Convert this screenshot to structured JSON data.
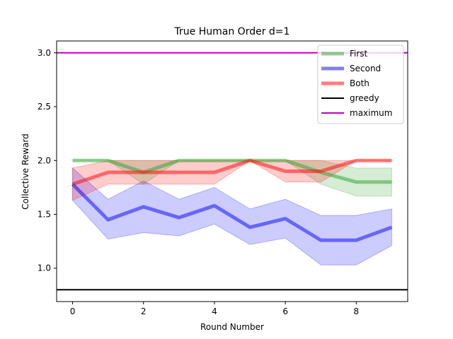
{
  "chart_data": {
    "type": "line",
    "title": "True Human Order d=1",
    "xlabel": "Round Number",
    "ylabel": "Collective Reward",
    "xlim": [
      -0.45,
      9.45
    ],
    "ylim": [
      0.69,
      3.11
    ],
    "xticks": [
      0,
      2,
      4,
      6,
      8
    ],
    "yticks": [
      1.0,
      1.5,
      2.0,
      2.5,
      3.0
    ],
    "x": [
      0,
      1,
      2,
      3,
      4,
      5,
      6,
      7,
      8,
      9
    ],
    "series": [
      {
        "name": "First",
        "color": "#2ca02c",
        "values": [
          2.0,
          2.0,
          1.89,
          2.0,
          2.0,
          2.0,
          2.0,
          1.89,
          1.8,
          1.8
        ],
        "lower": [
          2.0,
          2.0,
          1.78,
          2.0,
          2.0,
          2.0,
          2.0,
          1.78,
          1.67,
          1.67
        ],
        "upper": [
          2.0,
          2.0,
          2.0,
          2.0,
          2.0,
          2.0,
          2.0,
          2.0,
          1.93,
          1.93
        ]
      },
      {
        "name": "Second",
        "color": "#0000ff",
        "values": [
          1.78,
          1.45,
          1.57,
          1.47,
          1.58,
          1.38,
          1.46,
          1.26,
          1.26,
          1.38
        ],
        "lower": [
          1.63,
          1.27,
          1.33,
          1.3,
          1.41,
          1.22,
          1.28,
          1.03,
          1.03,
          1.21
        ],
        "upper": [
          1.93,
          1.64,
          1.81,
          1.64,
          1.75,
          1.55,
          1.64,
          1.49,
          1.49,
          1.55
        ]
      },
      {
        "name": "Both",
        "color": "#ff0000",
        "values": [
          1.78,
          1.89,
          1.89,
          1.89,
          1.89,
          2.0,
          1.9,
          1.9,
          2.0,
          2.0
        ],
        "lower": [
          1.63,
          1.78,
          1.78,
          1.78,
          1.78,
          2.0,
          1.8,
          1.8,
          2.0,
          2.0
        ],
        "upper": [
          1.93,
          2.0,
          2.0,
          2.0,
          2.0,
          2.0,
          2.0,
          2.0,
          2.0,
          2.0
        ]
      }
    ],
    "hlines": [
      {
        "name": "greedy",
        "value": 0.8,
        "color": "#000000"
      },
      {
        "name": "maximum",
        "value": 3.0,
        "color": "#bf00bf"
      }
    ],
    "legend": "top-right",
    "grid": false
  }
}
